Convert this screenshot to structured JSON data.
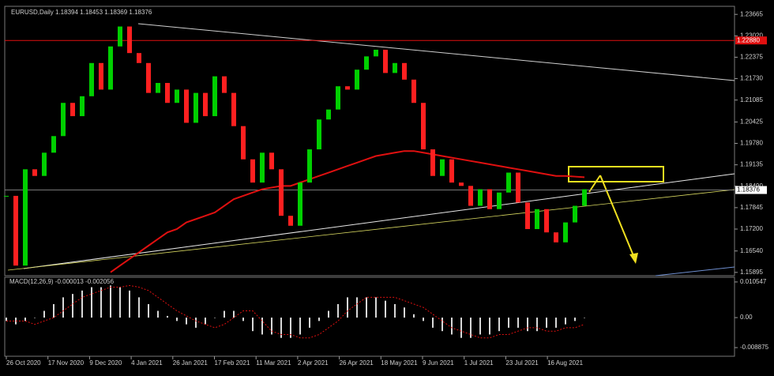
{
  "chart_data": {
    "type": "candlestick",
    "title": "EURUSD,Daily  1.18394 1.18453 1.18369 1.18376",
    "up_color": "#00d000",
    "down_color": "#ff2020",
    "closes": [
      1.182,
      1.161,
      1.19,
      1.188,
      1.195,
      1.2,
      1.21,
      1.206,
      1.212,
      1.222,
      1.214,
      1.227,
      1.233,
      1.225,
      1.222,
      1.213,
      1.216,
      1.21,
      1.214,
      1.204,
      1.213,
      1.206,
      1.218,
      1.213,
      1.203,
      1.193,
      1.186,
      1.195,
      1.19,
      1.176,
      1.173,
      1.186,
      1.196,
      1.205,
      1.208,
      1.215,
      1.214,
      1.22,
      1.224,
      1.226,
      1.219,
      1.222,
      1.217,
      1.21,
      1.196,
      1.188,
      1.193,
      1.186,
      1.185,
      1.179,
      1.184,
      1.178,
      1.183,
      1.189,
      1.18,
      1.172,
      1.178,
      1.171,
      1.168,
      1.174,
      1.179,
      1.184
    ],
    "ma": {
      "color": "#e01010",
      "values": [
        null,
        null,
        null,
        null,
        null,
        null,
        null,
        null,
        null,
        null,
        null,
        1.159,
        1.161,
        1.163,
        1.165,
        1.167,
        1.169,
        1.171,
        1.172,
        1.174,
        1.175,
        1.176,
        1.177,
        1.179,
        1.181,
        1.182,
        1.183,
        1.184,
        1.1845,
        1.185,
        1.185,
        1.186,
        1.187,
        1.188,
        1.189,
        1.19,
        1.191,
        1.192,
        1.193,
        1.194,
        1.1945,
        1.195,
        1.1955,
        1.1955,
        1.195,
        1.1945,
        1.194,
        1.1935,
        1.193,
        1.1925,
        1.192,
        1.1915,
        1.191,
        1.1905,
        1.19,
        1.1895,
        1.189,
        1.1885,
        1.188,
        1.188,
        1.1878,
        1.1876
      ]
    },
    "ylim": [
      1.1582,
      1.2386
    ],
    "yticks": [
      1.23665,
      {
        "value": 1.2302,
        "label": "1.23020"
      },
      1.22375,
      {
        "value": 1.2173,
        "label": "1.21730"
      },
      1.21085,
      1.20425,
      {
        "value": 1.1978,
        "label": "1.19780"
      },
      1.19135,
      {
        "value": 1.1849,
        "label": "1.18490"
      },
      1.17845,
      {
        "value": 1.172,
        "label": "1.17200"
      },
      {
        "value": 1.1654,
        "label": "1.16540"
      },
      1.15895
    ],
    "level_line": {
      "value": 1.2288,
      "label": "1.22880"
    },
    "last_price": 1.18376,
    "xticks": [
      "26 Oct 2020",
      "17 Nov 2020",
      "9 Dec 2020",
      "4 Jan 2021",
      "26 Jan 2021",
      "17 Feb 2021",
      "11 Mar 2021",
      "2 Apr 2021",
      "26 Apr 2021",
      "18 May 2021",
      "9 Jun 2021",
      "1 Jul 2021",
      "23 Jul 2021",
      "16 Aug 2021"
    ],
    "macd": {
      "label": "MACD(12,26,9) -0.000013 -0.002056",
      "histogram": [
        -0.001,
        -0.002,
        -0.001,
        0,
        0.002,
        0.004,
        0.006,
        0.007,
        0.008,
        0.009,
        0.009,
        0.0095,
        0.009,
        0.008,
        0.006,
        0.004,
        0.002,
        0.0005,
        -0.001,
        -0.002,
        -0.003,
        -0.002,
        0,
        0.002,
        0.002,
        -0.001,
        -0.004,
        -0.005,
        -0.005,
        -0.006,
        -0.006,
        -0.005,
        -0.003,
        -0.001,
        0.002,
        0.004,
        0.006,
        0.006,
        0.006,
        0.006,
        0.005,
        0.004,
        0.003,
        0.001,
        -0.001,
        -0.003,
        -0.004,
        -0.005,
        -0.006,
        -0.006,
        -0.005,
        -0.005,
        -0.004,
        -0.003,
        -0.003,
        -0.004,
        -0.004,
        -0.003,
        -0.003,
        -0.002,
        -0.001,
        0
      ],
      "signal": [
        -0.001,
        -0.001,
        -0.001,
        -0.002,
        -0.001,
        0,
        0.002,
        0.004,
        0.006,
        0.007,
        0.008,
        0.009,
        0.009,
        0.0095,
        0.009,
        0.008,
        0.006,
        0.004,
        0.002,
        0.0005,
        -0.001,
        -0.002,
        -0.003,
        -0.002,
        0,
        0.002,
        0.002,
        -0.001,
        -0.004,
        -0.005,
        -0.005,
        -0.006,
        -0.006,
        -0.005,
        -0.003,
        -0.001,
        0.002,
        0.004,
        0.006,
        0.006,
        0.006,
        0.006,
        0.005,
        0.004,
        0.003,
        0.001,
        -0.001,
        -0.003,
        -0.004,
        -0.005,
        -0.006,
        -0.006,
        -0.005,
        -0.005,
        -0.004,
        -0.003,
        -0.003,
        -0.004,
        -0.004,
        -0.003,
        -0.003,
        -0.002
      ],
      "ylim": [
        -0.0112,
        0.0117
      ],
      "yticks": [
        0.010547,
        {
          "value": 0,
          "label": "0.00"
        },
        -0.008875
      ]
    }
  }
}
